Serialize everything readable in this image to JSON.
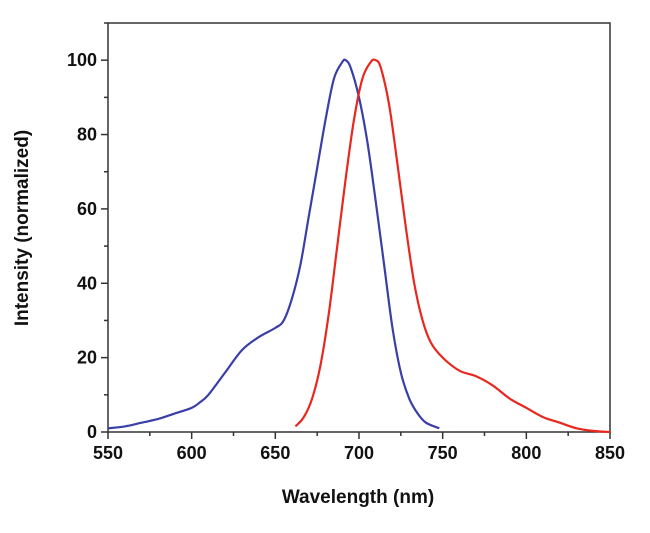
{
  "chart_data": {
    "type": "line",
    "title": "",
    "xlabel": "Wavelength (nm)",
    "ylabel": "Intensity (normalized)",
    "xlim": [
      550,
      850
    ],
    "ylim": [
      0,
      110
    ],
    "xticks": [
      550,
      600,
      650,
      700,
      750,
      800,
      850
    ],
    "yticks": [
      0,
      20,
      40,
      60,
      80,
      100
    ],
    "grid": false,
    "series": [
      {
        "color": "#3a3fa8",
        "x": [
          550,
          560,
          570,
          580,
          590,
          600,
          605,
          610,
          620,
          630,
          640,
          650,
          655,
          660,
          665,
          670,
          675,
          680,
          685,
          690,
          692,
          695,
          700,
          705,
          710,
          715,
          720,
          725,
          730,
          735,
          740,
          748
        ],
        "y": [
          1,
          1.5,
          2.5,
          3.5,
          5,
          6.5,
          8,
          10,
          16,
          22,
          25.5,
          28,
          30,
          36,
          45,
          58,
          71,
          84,
          95,
          99.5,
          100,
          98,
          90,
          78,
          62,
          45,
          28,
          16,
          9,
          5,
          2.5,
          1
        ]
      },
      {
        "color": "#e8281e",
        "x": [
          662,
          667,
          672,
          677,
          682,
          687,
          692,
          697,
          702,
          707,
          710,
          713,
          718,
          723,
          728,
          733,
          738,
          743,
          750,
          760,
          770,
          780,
          790,
          800,
          810,
          820,
          830,
          840,
          850
        ],
        "y": [
          1.5,
          4,
          9,
          18,
          32,
          50,
          68,
          84,
          95,
          99.5,
          100,
          98,
          88,
          72,
          55,
          40,
          30,
          24,
          20,
          16.5,
          15,
          12.5,
          9,
          6.5,
          4,
          2.5,
          1,
          0.3,
          0
        ]
      }
    ]
  }
}
